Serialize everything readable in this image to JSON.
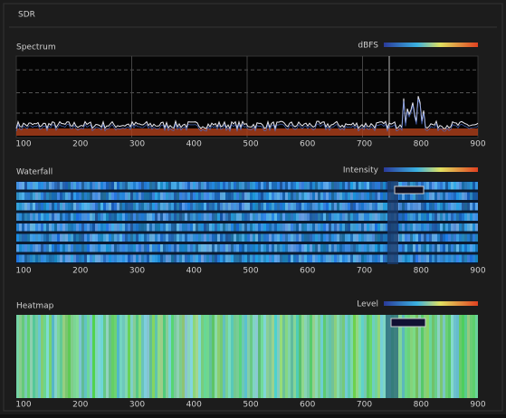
{
  "header": {
    "title": "SDR"
  },
  "panels": [
    {
      "title": "Spectrum",
      "legend": "dBFS"
    },
    {
      "title": "Waterfall",
      "legend": "Intensity"
    },
    {
      "title": "Heatmap",
      "legend": "Level"
    }
  ],
  "x_ticks": [
    "100",
    "200",
    "300",
    "400",
    "500",
    "600",
    "700",
    "800",
    "900"
  ]
}
